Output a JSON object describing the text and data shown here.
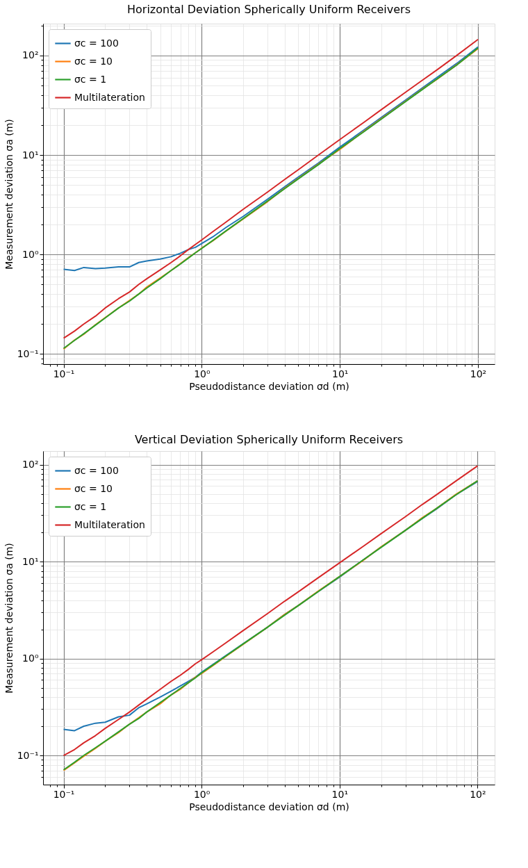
{
  "chart_data": [
    {
      "type": "line",
      "title": "Horizontal Deviation Spherically Uniform Receivers",
      "xlabel": "Pseudodistance deviation σd (m)",
      "ylabel": "Measurement deviation σa (m)",
      "log": "xy",
      "grid": true,
      "legend": "top left",
      "x": [
        0.1,
        0.12,
        0.14,
        0.17,
        0.2,
        0.25,
        0.3,
        0.35,
        0.4,
        0.5,
        0.6,
        0.7,
        0.8,
        0.9,
        1,
        1.2,
        1.5,
        2,
        3,
        4,
        5,
        7,
        10,
        15,
        20,
        30,
        40,
        50,
        70,
        100
      ],
      "xlim": [
        0.071,
        132
      ],
      "ylim": [
        0.079,
        209
      ],
      "xticks": [
        {
          "value": 0.08,
          "label": null
        },
        {
          "value": 0.09,
          "label": null
        },
        {
          "value": 0.1,
          "label": "10⁻¹"
        },
        {
          "value": 0.2,
          "label": null
        },
        {
          "value": 0.3,
          "label": null
        },
        {
          "value": 0.4,
          "label": null
        },
        {
          "value": 0.5,
          "label": null
        },
        {
          "value": 0.6,
          "label": null
        },
        {
          "value": 0.7,
          "label": null
        },
        {
          "value": 0.8,
          "label": null
        },
        {
          "value": 0.9,
          "label": null
        },
        {
          "value": 1,
          "label": "10⁰"
        },
        {
          "value": 2,
          "label": null
        },
        {
          "value": 3,
          "label": null
        },
        {
          "value": 4,
          "label": null
        },
        {
          "value": 5,
          "label": null
        },
        {
          "value": 6,
          "label": null
        },
        {
          "value": 7,
          "label": null
        },
        {
          "value": 8,
          "label": null
        },
        {
          "value": 9,
          "label": null
        },
        {
          "value": 10,
          "label": "10¹"
        },
        {
          "value": 20,
          "label": null
        },
        {
          "value": 30,
          "label": null
        },
        {
          "value": 40,
          "label": null
        },
        {
          "value": 50,
          "label": null
        },
        {
          "value": 60,
          "label": null
        },
        {
          "value": 70,
          "label": null
        },
        {
          "value": 80,
          "label": null
        },
        {
          "value": 90,
          "label": null
        },
        {
          "value": 100,
          "label": "10²"
        }
      ],
      "yticks": [
        {
          "value": 0.08,
          "label": null
        },
        {
          "value": 0.09,
          "label": null
        },
        {
          "value": 0.1,
          "label": "10⁻¹"
        },
        {
          "value": 0.2,
          "label": null
        },
        {
          "value": 0.3,
          "label": null
        },
        {
          "value": 0.4,
          "label": null
        },
        {
          "value": 0.5,
          "label": null
        },
        {
          "value": 0.6,
          "label": null
        },
        {
          "value": 0.7,
          "label": null
        },
        {
          "value": 0.8,
          "label": null
        },
        {
          "value": 0.9,
          "label": null
        },
        {
          "value": 1,
          "label": "10⁰"
        },
        {
          "value": 2,
          "label": null
        },
        {
          "value": 3,
          "label": null
        },
        {
          "value": 4,
          "label": null
        },
        {
          "value": 5,
          "label": null
        },
        {
          "value": 6,
          "label": null
        },
        {
          "value": 7,
          "label": null
        },
        {
          "value": 8,
          "label": null
        },
        {
          "value": 9,
          "label": null
        },
        {
          "value": 10,
          "label": "10¹"
        },
        {
          "value": 20,
          "label": null
        },
        {
          "value": 30,
          "label": null
        },
        {
          "value": 40,
          "label": null
        },
        {
          "value": 50,
          "label": null
        },
        {
          "value": 60,
          "label": null
        },
        {
          "value": 70,
          "label": null
        },
        {
          "value": 80,
          "label": null
        },
        {
          "value": 90,
          "label": null
        },
        {
          "value": 100,
          "label": "10²"
        },
        {
          "value": 200,
          "label": null
        }
      ],
      "series": [
        {
          "name": "σc = 100",
          "color": "#1f77b4",
          "values": [
            0.71,
            0.69,
            0.74,
            0.72,
            0.73,
            0.75,
            0.75,
            0.83,
            0.86,
            0.9,
            0.95,
            1.03,
            1.12,
            1.18,
            1.29,
            1.5,
            1.87,
            2.42,
            3.6,
            4.8,
            6.0,
            8.3,
            12.0,
            17.9,
            23.9,
            35.8,
            47.8,
            59.6,
            83,
            122
          ]
        },
        {
          "name": "σc = 10",
          "color": "#ff7f0e",
          "values": [
            0.112,
            0.138,
            0.158,
            0.197,
            0.232,
            0.29,
            0.345,
            0.4,
            0.47,
            0.58,
            0.69,
            0.81,
            0.93,
            1.04,
            1.16,
            1.37,
            1.72,
            2.28,
            3.4,
            4.65,
            5.8,
            8.1,
            11.4,
            17.4,
            23.2,
            34.8,
            46.5,
            57,
            80.5,
            117
          ]
        },
        {
          "name": "σc = 1",
          "color": "#2ca02c",
          "values": [
            0.114,
            0.137,
            0.16,
            0.195,
            0.23,
            0.29,
            0.34,
            0.4,
            0.46,
            0.57,
            0.69,
            0.8,
            0.92,
            1.04,
            1.15,
            1.38,
            1.73,
            2.3,
            3.45,
            4.6,
            5.75,
            8.0,
            11.6,
            17.2,
            23,
            34.5,
            46,
            57.5,
            80,
            119
          ]
        },
        {
          "name": "Multilateration",
          "color": "#d62728",
          "values": [
            0.144,
            0.17,
            0.2,
            0.24,
            0.29,
            0.36,
            0.42,
            0.5,
            0.57,
            0.7,
            0.83,
            0.97,
            1.12,
            1.26,
            1.4,
            1.69,
            2.12,
            2.85,
            4.25,
            5.7,
            7.1,
            10.0,
            14.3,
            21.4,
            28.6,
            42.9,
            57,
            71,
            100,
            145
          ]
        }
      ]
    },
    {
      "type": "line",
      "title": "Vertical Deviation Spherically Uniform Receivers",
      "xlabel": "Pseudodistance deviation σd (m)",
      "ylabel": "Measurement deviation σa (m)",
      "log": "xy",
      "grid": true,
      "legend": "top left",
      "x": [
        0.1,
        0.12,
        0.14,
        0.17,
        0.2,
        0.25,
        0.3,
        0.35,
        0.4,
        0.5,
        0.6,
        0.7,
        0.8,
        0.9,
        1,
        1.2,
        1.5,
        2,
        3,
        4,
        5,
        7,
        10,
        15,
        20,
        30,
        40,
        50,
        70,
        100
      ],
      "xlim": [
        0.071,
        133
      ],
      "ylim": [
        0.05,
        138
      ],
      "xticks": [
        {
          "value": 0.08,
          "label": null
        },
        {
          "value": 0.09,
          "label": null
        },
        {
          "value": 0.1,
          "label": "10⁻¹"
        },
        {
          "value": 0.2,
          "label": null
        },
        {
          "value": 0.3,
          "label": null
        },
        {
          "value": 0.4,
          "label": null
        },
        {
          "value": 0.5,
          "label": null
        },
        {
          "value": 0.6,
          "label": null
        },
        {
          "value": 0.7,
          "label": null
        },
        {
          "value": 0.8,
          "label": null
        },
        {
          "value": 0.9,
          "label": null
        },
        {
          "value": 1,
          "label": "10⁰"
        },
        {
          "value": 2,
          "label": null
        },
        {
          "value": 3,
          "label": null
        },
        {
          "value": 4,
          "label": null
        },
        {
          "value": 5,
          "label": null
        },
        {
          "value": 6,
          "label": null
        },
        {
          "value": 7,
          "label": null
        },
        {
          "value": 8,
          "label": null
        },
        {
          "value": 9,
          "label": null
        },
        {
          "value": 10,
          "label": "10¹"
        },
        {
          "value": 20,
          "label": null
        },
        {
          "value": 30,
          "label": null
        },
        {
          "value": 40,
          "label": null
        },
        {
          "value": 50,
          "label": null
        },
        {
          "value": 60,
          "label": null
        },
        {
          "value": 70,
          "label": null
        },
        {
          "value": 80,
          "label": null
        },
        {
          "value": 90,
          "label": null
        },
        {
          "value": 100,
          "label": "10²"
        }
      ],
      "yticks": [
        {
          "value": 0.06,
          "label": null
        },
        {
          "value": 0.07,
          "label": null
        },
        {
          "value": 0.08,
          "label": null
        },
        {
          "value": 0.09,
          "label": null
        },
        {
          "value": 0.1,
          "label": "10⁻¹"
        },
        {
          "value": 0.2,
          "label": null
        },
        {
          "value": 0.3,
          "label": null
        },
        {
          "value": 0.4,
          "label": null
        },
        {
          "value": 0.5,
          "label": null
        },
        {
          "value": 0.6,
          "label": null
        },
        {
          "value": 0.7,
          "label": null
        },
        {
          "value": 0.8,
          "label": null
        },
        {
          "value": 0.9,
          "label": null
        },
        {
          "value": 1,
          "label": "10⁰"
        },
        {
          "value": 2,
          "label": null
        },
        {
          "value": 3,
          "label": null
        },
        {
          "value": 4,
          "label": null
        },
        {
          "value": 5,
          "label": null
        },
        {
          "value": 6,
          "label": null
        },
        {
          "value": 7,
          "label": null
        },
        {
          "value": 8,
          "label": null
        },
        {
          "value": 9,
          "label": null
        },
        {
          "value": 10,
          "label": "10¹"
        },
        {
          "value": 20,
          "label": null
        },
        {
          "value": 30,
          "label": null
        },
        {
          "value": 40,
          "label": null
        },
        {
          "value": 50,
          "label": null
        },
        {
          "value": 60,
          "label": null
        },
        {
          "value": 70,
          "label": null
        },
        {
          "value": 80,
          "label": null
        },
        {
          "value": 90,
          "label": null
        },
        {
          "value": 100,
          "label": "10²"
        }
      ],
      "series": [
        {
          "name": "σc = 100",
          "color": "#1f77b4",
          "values": [
            0.186,
            0.18,
            0.2,
            0.215,
            0.22,
            0.25,
            0.26,
            0.31,
            0.34,
            0.4,
            0.46,
            0.52,
            0.58,
            0.64,
            0.72,
            0.86,
            1.07,
            1.42,
            2.1,
            2.85,
            3.5,
            4.9,
            6.9,
            10.5,
            14.1,
            21,
            28,
            34.5,
            49,
            67
          ]
        },
        {
          "name": "σc = 10",
          "color": "#ff7f0e",
          "values": [
            0.07,
            0.084,
            0.098,
            0.118,
            0.14,
            0.172,
            0.21,
            0.245,
            0.28,
            0.34,
            0.42,
            0.48,
            0.56,
            0.64,
            0.7,
            0.84,
            1.05,
            1.4,
            2.1,
            2.85,
            3.5,
            4.95,
            7.0,
            10.4,
            14.2,
            21,
            28.5,
            35,
            49.5,
            68
          ]
        },
        {
          "name": "σc = 1",
          "color": "#2ca02c",
          "values": [
            0.071,
            0.085,
            0.1,
            0.12,
            0.14,
            0.175,
            0.21,
            0.24,
            0.28,
            0.35,
            0.42,
            0.49,
            0.56,
            0.63,
            0.71,
            0.85,
            1.06,
            1.41,
            2.1,
            2.8,
            3.5,
            4.9,
            7.0,
            10.5,
            14.0,
            21,
            28,
            35,
            49,
            68
          ]
        },
        {
          "name": "Multilateration",
          "color": "#d62728",
          "values": [
            0.1,
            0.115,
            0.135,
            0.16,
            0.19,
            0.235,
            0.28,
            0.33,
            0.38,
            0.48,
            0.58,
            0.67,
            0.77,
            0.88,
            0.97,
            1.16,
            1.45,
            1.94,
            2.9,
            3.9,
            4.85,
            6.8,
            9.7,
            14.5,
            19.4,
            29,
            39,
            48.5,
            68,
            97
          ]
        }
      ]
    }
  ]
}
